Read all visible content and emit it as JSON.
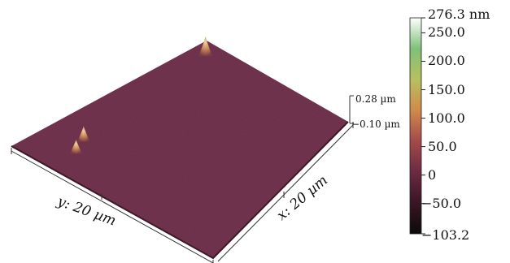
{
  "chart_data": {
    "type": "surface3d",
    "x_axis_label": "x: 20 µm",
    "y_axis_label": "y: 20 µm",
    "z_scale": {
      "top": "0.28 µm",
      "bottom": "−0.10 µm"
    },
    "colorbar": {
      "unit": "nm",
      "min": -103.2,
      "max": 276.3,
      "max_label": "276.3 nm",
      "min_label": "−103.2",
      "ticks": [
        {
          "value": 250.0,
          "label": "250.0"
        },
        {
          "value": 200.0,
          "label": "200.0"
        },
        {
          "value": 150.0,
          "label": "150.0"
        },
        {
          "value": 100.0,
          "label": "100.0"
        },
        {
          "value": 50.0,
          "label": "50.0"
        },
        {
          "value": 0,
          "label": "0"
        },
        {
          "value": -50.0,
          "label": "−50.0"
        }
      ],
      "colors": [
        "#0a0a0a",
        "#3a1524",
        "#6b2a42",
        "#a34a4a",
        "#d08a4a",
        "#b8c060",
        "#7fc07a",
        "#ffffff"
      ]
    },
    "surface_color": "#6b2d45",
    "peaks": [
      {
        "x_um": 1.5,
        "y_um": 1.2,
        "height_nm": 230
      },
      {
        "x_um": 4.0,
        "y_um": 15.5,
        "height_nm": 170
      },
      {
        "x_um": 5.0,
        "y_um": 17.0,
        "height_nm": 150
      }
    ]
  }
}
